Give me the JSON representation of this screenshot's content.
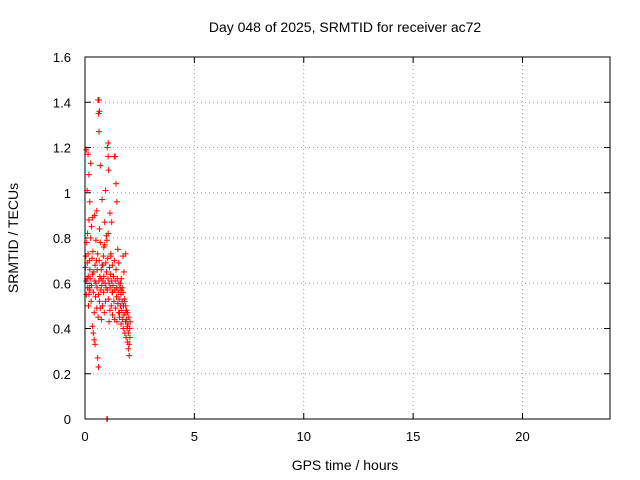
{
  "chart_data": {
    "type": "scatter",
    "title": "Day 048 of 2025, SRMTID for receiver ac72",
    "xlabel": "GPS time / hours",
    "ylabel": "SRMTID / TECUs",
    "xlim": [
      0,
      24
    ],
    "ylim": [
      0,
      1.6
    ],
    "xticks": [
      0,
      5,
      10,
      15,
      20
    ],
    "xtick_labels": [
      "0",
      "5",
      "10",
      "15",
      "20"
    ],
    "yticks": [
      0,
      0.2,
      0.4,
      0.6,
      0.8,
      1.0,
      1.2,
      1.4,
      1.6
    ],
    "ytick_labels": [
      "0",
      "0.2",
      "0.4",
      "0.6",
      "0.8",
      "1",
      "1.2",
      "1.4",
      "1.6"
    ],
    "grid": true,
    "marker": "plus",
    "color": "#ff0000",
    "series": [
      {
        "name": "ac72",
        "x": [
          0.02,
          0.04,
          0.05,
          0.06,
          0.08,
          0.1,
          0.12,
          0.12,
          0.14,
          0.15,
          0.16,
          0.18,
          0.2,
          0.22,
          0.22,
          0.24,
          0.26,
          0.28,
          0.3,
          0.32,
          0.34,
          0.35,
          0.36,
          0.38,
          0.4,
          0.42,
          0.44,
          0.45,
          0.46,
          0.48,
          0.5,
          0.52,
          0.54,
          0.55,
          0.56,
          0.58,
          0.6,
          0.62,
          0.64,
          0.65,
          0.66,
          0.68,
          0.7,
          0.7,
          0.72,
          0.74,
          0.75,
          0.76,
          0.78,
          0.8,
          0.82,
          0.84,
          0.85,
          0.86,
          0.88,
          0.9,
          0.92,
          0.94,
          0.95,
          0.96,
          0.98,
          1.0,
          1.02,
          1.04,
          1.05,
          1.06,
          1.08,
          1.1,
          1.12,
          1.14,
          1.15,
          1.16,
          1.18,
          1.2,
          1.22,
          1.24,
          1.25,
          1.26,
          1.28,
          1.3,
          1.32,
          1.34,
          1.35,
          1.36,
          1.38,
          1.4,
          1.42,
          1.44,
          1.45,
          1.46,
          1.48,
          1.5,
          1.52,
          1.54,
          1.55,
          1.56,
          1.58,
          1.6,
          1.62,
          1.64,
          1.65,
          1.66,
          1.68,
          1.7,
          1.72,
          1.74,
          1.75,
          1.76,
          1.78,
          1.8,
          1.82,
          1.84,
          1.85,
          1.86,
          1.88,
          1.9,
          1.92,
          1.94,
          1.95,
          1.96,
          1.98,
          2.0,
          2.02,
          2.04,
          2.05,
          2.06,
          0.06,
          0.1,
          0.14,
          0.18,
          0.22,
          0.26,
          0.3,
          0.34,
          0.38,
          0.42,
          0.46,
          0.5,
          0.54,
          0.58,
          0.62,
          0.66,
          0.7,
          0.74,
          0.78,
          0.82,
          0.86,
          0.9,
          0.94,
          0.98,
          1.02,
          1.06,
          1.1,
          1.14,
          1.18,
          1.22,
          1.26,
          1.3,
          1.34,
          1.38,
          1.42,
          1.46,
          1.5,
          1.54,
          1.58,
          1.62,
          1.66,
          1.7,
          1.74,
          1.78,
          1.82,
          1.86,
          1.9,
          1.94,
          1.98,
          2.02,
          0.6,
          0.62,
          0.64,
          1.0,
          1.02,
          1.06,
          1.08,
          0.1,
          0.18,
          0.2,
          0.64,
          0.66
        ],
        "y": [
          0.67,
          0.72,
          0.61,
          0.55,
          0.78,
          0.69,
          0.82,
          0.58,
          0.73,
          0.63,
          0.5,
          0.88,
          0.7,
          0.57,
          0.66,
          0.62,
          0.8,
          0.52,
          0.59,
          0.71,
          0.64,
          0.89,
          0.74,
          0.56,
          0.65,
          0.47,
          0.9,
          0.61,
          0.68,
          0.54,
          0.6,
          0.7,
          0.49,
          0.58,
          0.66,
          0.73,
          0.45,
          0.55,
          0.61,
          0.7,
          0.52,
          0.63,
          0.78,
          0.49,
          0.57,
          0.66,
          0.44,
          0.59,
          0.68,
          0.5,
          0.61,
          0.72,
          0.56,
          0.63,
          0.47,
          0.77,
          0.6,
          0.52,
          0.69,
          0.58,
          0.65,
          0.79,
          0.57,
          0.71,
          0.62,
          0.82,
          0.53,
          0.6,
          0.67,
          0.48,
          0.58,
          0.64,
          0.72,
          0.5,
          0.61,
          0.56,
          0.68,
          0.46,
          0.59,
          0.63,
          0.52,
          0.7,
          0.44,
          0.57,
          0.61,
          0.49,
          0.66,
          0.54,
          0.58,
          0.43,
          0.62,
          0.51,
          0.56,
          0.47,
          0.6,
          0.53,
          0.45,
          0.58,
          0.5,
          0.55,
          0.42,
          0.57,
          0.48,
          0.52,
          0.44,
          0.56,
          0.4,
          0.5,
          0.46,
          0.53,
          0.38,
          0.47,
          0.43,
          0.5,
          0.36,
          0.44,
          0.4,
          0.47,
          0.34,
          0.42,
          0.38,
          0.45,
          0.33,
          0.4,
          0.36,
          0.43,
          1.19,
          1.01,
          1.17,
          1.08,
          0.96,
          1.13,
          0.85,
          0.41,
          0.38,
          0.35,
          0.33,
          0.79,
          0.92,
          0.27,
          0.23,
          0.84,
          1.12,
          0.62,
          0.97,
          0.68,
          0.76,
          0.87,
          1.01,
          0.81,
          1.2,
          1.22,
          0.43,
          0.91,
          0.73,
          0.87,
          0.56,
          0.63,
          1.16,
          1.16,
          1.04,
          0.96,
          0.75,
          0.69,
          0.47,
          0.6,
          0.62,
          0.58,
          0.72,
          0.65,
          0.52,
          0.73,
          0.48,
          0.41,
          0.31,
          0.28,
          1.41,
          1.35,
          1.27,
          0.0,
          0.0,
          1.16,
          1.1,
          0.62,
          0.55,
          0.58,
          1.41,
          1.36
        ]
      }
    ]
  }
}
